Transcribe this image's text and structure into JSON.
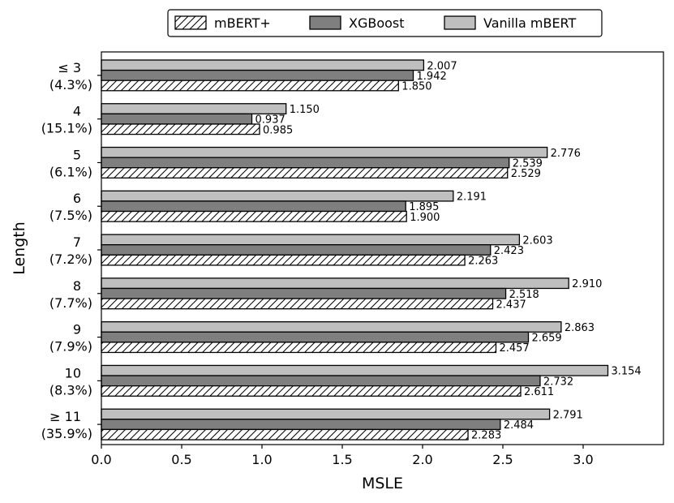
{
  "chart_data": {
    "type": "bar",
    "orientation": "horizontal",
    "xlabel": "MSLE",
    "ylabel": "Length",
    "xlim": [
      0,
      3.5
    ],
    "xticks": [
      "0.0",
      "0.5",
      "1.0",
      "1.5",
      "2.0",
      "2.5",
      "3.0"
    ],
    "grid": false,
    "legend_position": "top-center",
    "categories": [
      {
        "name": "≤ 3",
        "share": "(4.3%)"
      },
      {
        "name": "4",
        "share": "(15.1%)"
      },
      {
        "name": "5",
        "share": "(6.1%)"
      },
      {
        "name": "6",
        "share": "(7.5%)"
      },
      {
        "name": "7",
        "share": "(7.2%)"
      },
      {
        "name": "8",
        "share": "(7.7%)"
      },
      {
        "name": "9",
        "share": "(7.9%)"
      },
      {
        "name": "10",
        "share": "(8.3%)"
      },
      {
        "name": "≥ 11",
        "share": "(35.9%)"
      }
    ],
    "series": [
      {
        "name": "mBERT+",
        "pattern": "hatched",
        "color": "#ffffff",
        "values": [
          1.85,
          0.985,
          2.529,
          1.9,
          2.263,
          2.437,
          2.457,
          2.611,
          2.283
        ],
        "labels": [
          "1.850",
          "0.985",
          "2.529",
          "1.900",
          "2.263",
          "2.437",
          "2.457",
          "2.611",
          "2.283"
        ]
      },
      {
        "name": "XGBoost",
        "pattern": "solid",
        "color": "#7f7f7f",
        "values": [
          1.942,
          0.937,
          2.539,
          1.895,
          2.423,
          2.518,
          2.659,
          2.732,
          2.484
        ],
        "labels": [
          "1.942",
          "0.937",
          "2.539",
          "1.895",
          "2.423",
          "2.518",
          "2.659",
          "2.732",
          "2.484"
        ]
      },
      {
        "name": "Vanilla mBERT",
        "pattern": "solid",
        "color": "#bfbfbf",
        "values": [
          2.007,
          1.15,
          2.776,
          2.191,
          2.603,
          2.91,
          2.863,
          3.154,
          2.791
        ],
        "labels": [
          "2.007",
          "1.150",
          "2.776",
          "2.191",
          "2.603",
          "2.910",
          "2.863",
          "3.154",
          "2.791"
        ]
      }
    ]
  }
}
